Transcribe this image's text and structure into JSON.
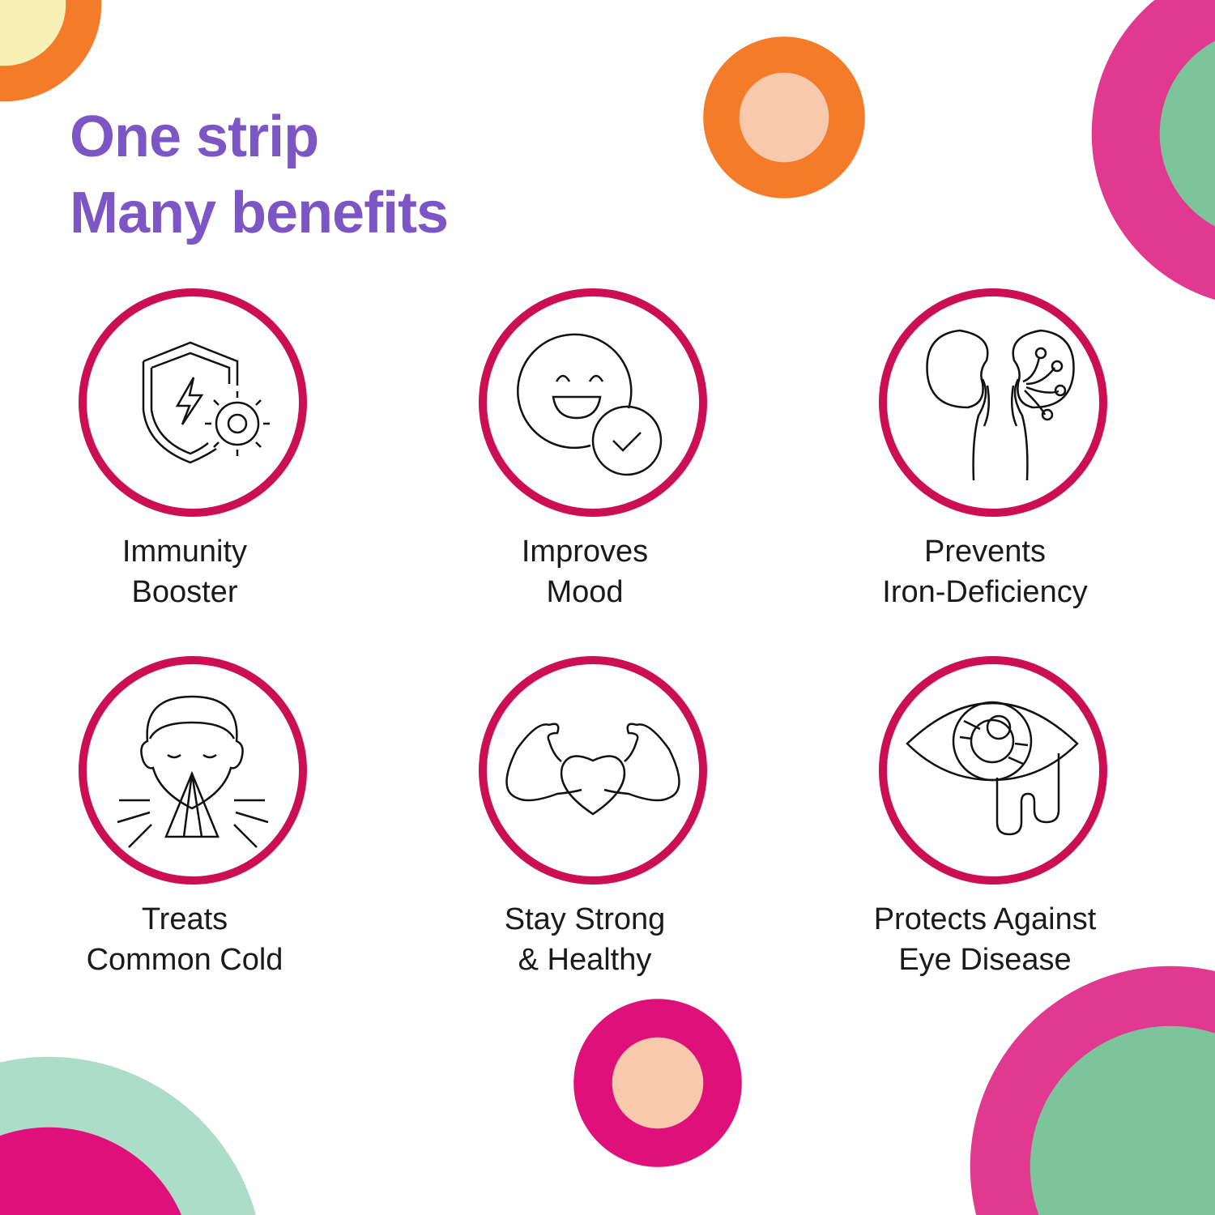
{
  "headline": {
    "line1": "One strip",
    "line2": "Many benefits"
  },
  "benefits": [
    {
      "icon": "shield-virus-icon",
      "line1": "Immunity",
      "line2": "Booster"
    },
    {
      "icon": "smiley-check-icon",
      "line1": "Improves",
      "line2": "Mood"
    },
    {
      "icon": "kidney-icon",
      "line1": "Prevents",
      "line2": "Iron-Deficiency"
    },
    {
      "icon": "sneezing-face-icon",
      "line1": "Treats",
      "line2": "Common Cold"
    },
    {
      "icon": "muscle-heart-icon",
      "line1": "Stay Strong",
      "line2": "& Healthy"
    },
    {
      "icon": "eye-disease-icon",
      "line1": "Protects Against",
      "line2": "Eye Disease"
    }
  ],
  "colors": {
    "headline": "#7B56C4",
    "ring": "#CC0F52",
    "orange": "#F47B2A",
    "pink": "#E0398F",
    "magenta": "#E0107A",
    "green": "#7CC49C",
    "mint": "#ADDCC8",
    "peach": "#F9C9AE",
    "cream": "#F7F1B5"
  }
}
